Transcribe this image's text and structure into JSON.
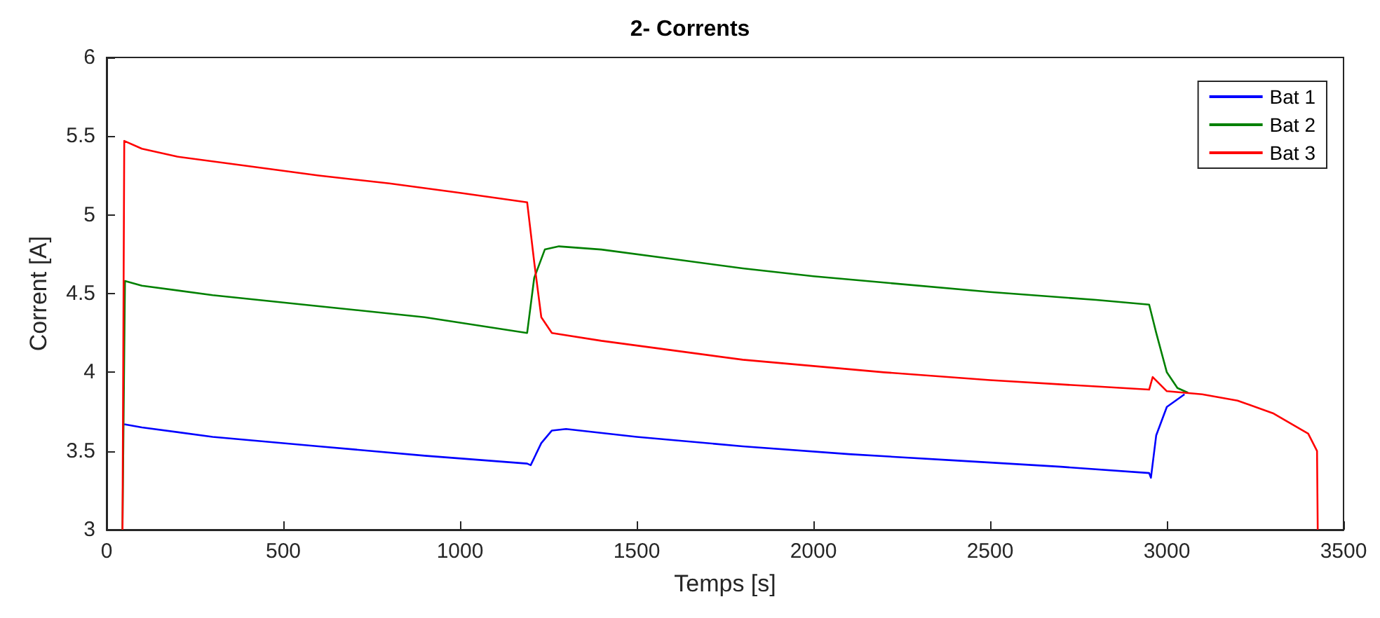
{
  "chart_data": {
    "type": "line",
    "title": "2- Corrents",
    "xlabel": "Temps [s]",
    "ylabel": "Corrent [A]",
    "xlim": [
      0,
      3500
    ],
    "xticks": [
      0,
      500,
      1000,
      1500,
      2000,
      2500,
      3000,
      3500
    ],
    "ylim": [
      3,
      6
    ],
    "yticks": [
      3,
      3.5,
      4,
      4.5,
      5,
      5.5,
      6
    ],
    "grid": false,
    "legend": "top right",
    "marker": "none",
    "line_style": "solid",
    "series": [
      {
        "name": "Bat 1",
        "color": "#0000ff",
        "x": [
          50,
          100,
          300,
          600,
          900,
          1190,
          1200,
          1230,
          1260,
          1300,
          1500,
          1800,
          2100,
          2400,
          2700,
          2950,
          2955,
          2970,
          3000,
          3050
        ],
        "values": [
          3.67,
          3.65,
          3.59,
          3.53,
          3.47,
          3.42,
          3.41,
          3.55,
          3.63,
          3.64,
          3.59,
          3.53,
          3.48,
          3.44,
          3.4,
          3.36,
          3.33,
          3.6,
          3.78,
          3.86
        ]
      },
      {
        "name": "Bat 2",
        "color": "#008000",
        "x": [
          45,
          52,
          100,
          300,
          600,
          900,
          1190,
          1210,
          1240,
          1280,
          1400,
          1600,
          1800,
          2000,
          2200,
          2500,
          2800,
          2950,
          2970,
          3000,
          3030,
          3060
        ],
        "values": [
          3.0,
          4.58,
          4.55,
          4.49,
          4.42,
          4.35,
          4.25,
          4.6,
          4.78,
          4.8,
          4.78,
          4.72,
          4.66,
          4.61,
          4.57,
          4.51,
          4.46,
          4.43,
          4.25,
          4.0,
          3.9,
          3.87
        ]
      },
      {
        "name": "Bat 3",
        "color": "#ff0000",
        "x": [
          45,
          50,
          100,
          200,
          400,
          600,
          800,
          1000,
          1190,
          1210,
          1230,
          1260,
          1400,
          1600,
          1800,
          2000,
          2200,
          2500,
          2800,
          2950,
          2960,
          3000,
          3100,
          3200,
          3300,
          3400,
          3425,
          3427
        ],
        "values": [
          3.0,
          5.47,
          5.42,
          5.37,
          5.31,
          5.25,
          5.2,
          5.14,
          5.08,
          4.7,
          4.35,
          4.25,
          4.2,
          4.14,
          4.08,
          4.04,
          4.0,
          3.95,
          3.91,
          3.89,
          3.97,
          3.88,
          3.86,
          3.82,
          3.74,
          3.61,
          3.5,
          3.0
        ]
      }
    ]
  }
}
